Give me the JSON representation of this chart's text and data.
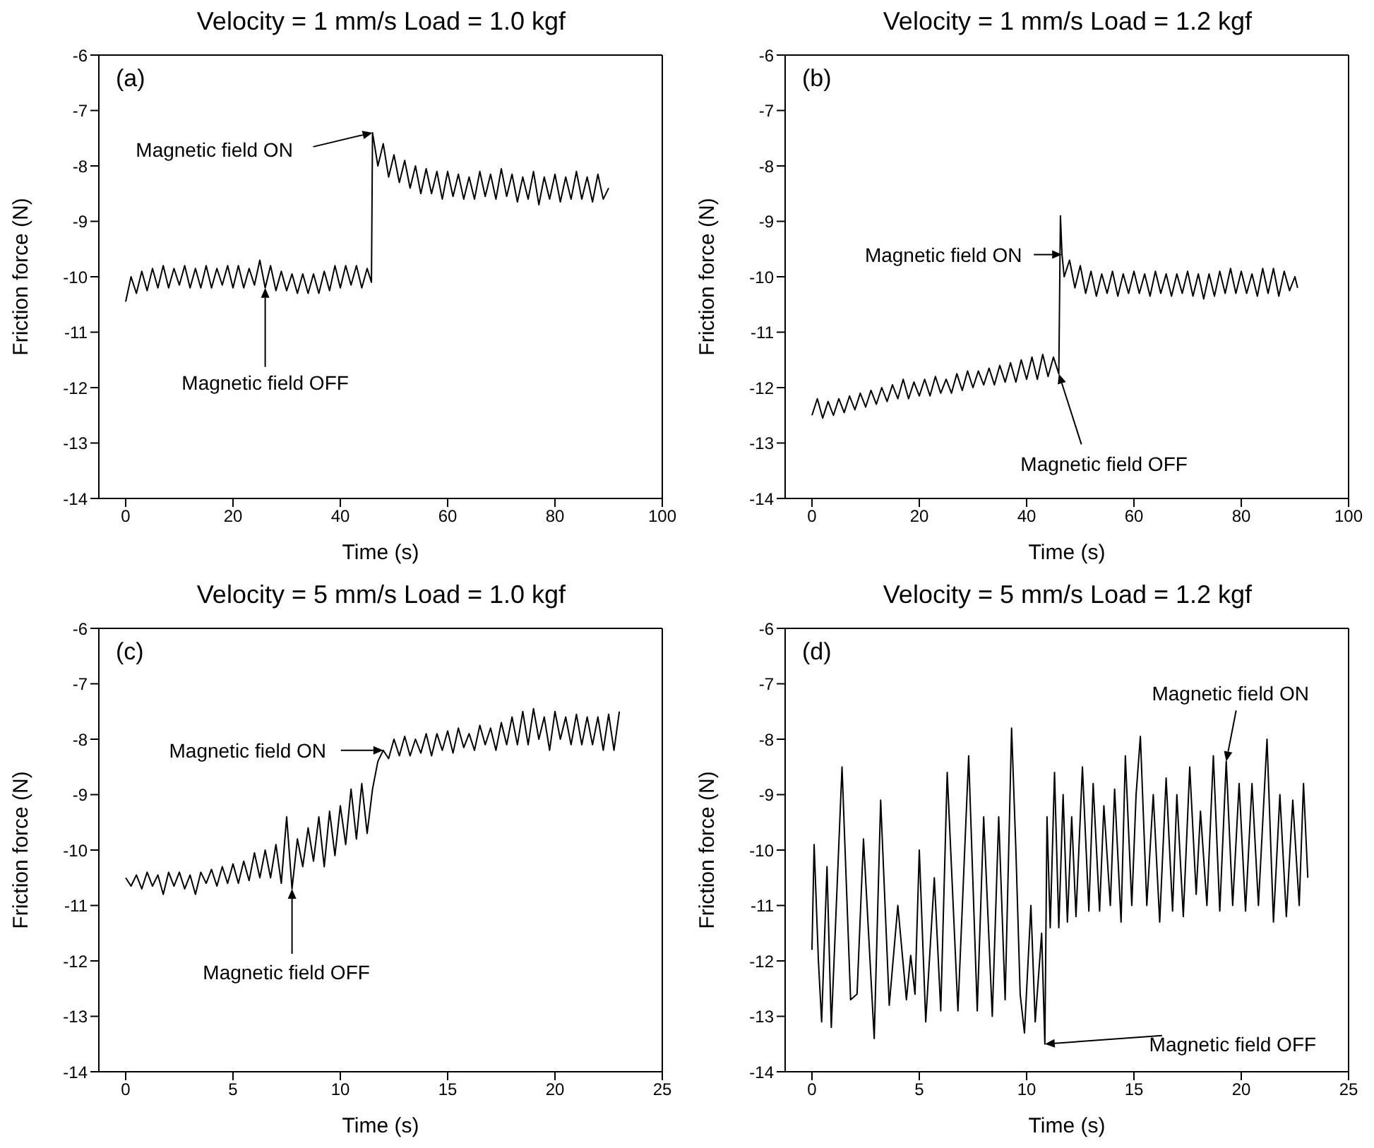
{
  "chart_data": [
    {
      "type": "line",
      "title": "Velocity = 1 mm/s  Load = 1.0 kgf",
      "xlabel": "Time (s)",
      "ylabel": "Friction force (N)",
      "color": "#000000",
      "x": [
        0,
        1,
        2,
        3,
        4,
        5,
        6,
        7,
        8,
        9,
        10,
        11,
        12,
        13,
        14,
        15,
        16,
        17,
        18,
        19,
        20,
        21,
        22,
        23,
        24,
        25,
        26,
        27,
        28,
        29,
        30,
        31,
        32,
        33,
        34,
        35,
        36,
        37,
        38,
        39,
        40,
        41,
        42,
        43,
        44,
        45,
        45.8,
        46,
        47,
        48,
        49,
        50,
        51,
        52,
        53,
        54,
        55,
        56,
        57,
        58,
        59,
        60,
        61,
        62,
        63,
        64,
        65,
        66,
        67,
        68,
        69,
        70,
        71,
        72,
        73,
        74,
        75,
        76,
        77,
        78,
        79,
        80,
        81,
        82,
        83,
        84,
        85,
        86,
        87,
        88,
        89,
        90
      ],
      "values": [
        -10.45,
        -10.0,
        -10.3,
        -9.9,
        -10.25,
        -9.85,
        -10.2,
        -9.8,
        -10.2,
        -9.85,
        -10.15,
        -9.8,
        -10.2,
        -9.85,
        -10.2,
        -9.8,
        -10.2,
        -9.85,
        -10.15,
        -9.8,
        -10.2,
        -9.8,
        -10.2,
        -9.85,
        -10.15,
        -9.7,
        -10.2,
        -9.8,
        -10.25,
        -9.9,
        -10.25,
        -9.95,
        -10.3,
        -9.95,
        -10.3,
        -9.95,
        -10.3,
        -9.9,
        -10.25,
        -9.8,
        -10.2,
        -9.8,
        -10.15,
        -9.8,
        -10.2,
        -9.85,
        -10.1,
        -7.4,
        -8.0,
        -7.6,
        -8.2,
        -7.8,
        -8.3,
        -7.9,
        -8.4,
        -8.0,
        -8.5,
        -8.05,
        -8.5,
        -8.1,
        -8.6,
        -8.1,
        -8.55,
        -8.15,
        -8.6,
        -8.2,
        -8.6,
        -8.1,
        -8.55,
        -8.15,
        -8.6,
        -8.05,
        -8.55,
        -8.15,
        -8.65,
        -8.2,
        -8.6,
        -8.1,
        -8.7,
        -8.2,
        -8.6,
        -8.15,
        -8.65,
        -8.2,
        -8.6,
        -8.1,
        -8.6,
        -8.2,
        -8.65,
        -8.15,
        -8.6,
        -8.4
      ],
      "xlim": [
        -5,
        100
      ],
      "xticks": [
        0,
        20,
        40,
        60,
        80,
        100
      ],
      "ylim": [
        -14,
        -6
      ],
      "yticks": [
        -14,
        -13,
        -12,
        -11,
        -10,
        -9,
        -8,
        -7,
        -6
      ],
      "annotations": [
        "(a)",
        {
          "text": "Magnetic field ON",
          "x": 46,
          "y": -7.4
        },
        {
          "text": "Magnetic field OFF",
          "x": 26,
          "y": -10.2
        }
      ]
    },
    {
      "type": "line",
      "title": "Velocity = 1 mm/s  Load = 1.2 kgf",
      "xlabel": "Time (s)",
      "ylabel": "Friction force (N)",
      "color": "#000000",
      "x": [
        0,
        1,
        2,
        3,
        4,
        5,
        6,
        7,
        8,
        9,
        10,
        11,
        12,
        13,
        14,
        15,
        16,
        17,
        18,
        19,
        20,
        21,
        22,
        23,
        24,
        25,
        26,
        27,
        28,
        29,
        30,
        31,
        32,
        33,
        34,
        35,
        36,
        37,
        38,
        39,
        40,
        41,
        42,
        43,
        44,
        45,
        46,
        46.3,
        46.6,
        47,
        48,
        49,
        50,
        51,
        52,
        53,
        54,
        55,
        56,
        57,
        58,
        59,
        60,
        61,
        62,
        63,
        64,
        65,
        66,
        67,
        68,
        69,
        70,
        71,
        72,
        73,
        74,
        75,
        76,
        77,
        78,
        79,
        80,
        81,
        82,
        83,
        84,
        85,
        86,
        87,
        88,
        89,
        90,
        90.5
      ],
      "values": [
        -12.5,
        -12.2,
        -12.55,
        -12.25,
        -12.5,
        -12.2,
        -12.45,
        -12.15,
        -12.4,
        -12.1,
        -12.35,
        -12.05,
        -12.3,
        -12.0,
        -12.25,
        -11.95,
        -12.2,
        -11.85,
        -12.2,
        -11.9,
        -12.15,
        -11.85,
        -12.15,
        -11.8,
        -12.1,
        -11.85,
        -12.1,
        -11.75,
        -12.05,
        -11.7,
        -12.0,
        -11.7,
        -11.95,
        -11.65,
        -11.95,
        -11.6,
        -11.9,
        -11.55,
        -11.9,
        -11.5,
        -11.85,
        -11.45,
        -11.85,
        -11.4,
        -11.8,
        -11.45,
        -11.75,
        -8.9,
        -9.6,
        -10.0,
        -9.7,
        -10.2,
        -9.8,
        -10.3,
        -9.9,
        -10.35,
        -9.95,
        -10.3,
        -9.9,
        -10.35,
        -9.95,
        -10.3,
        -9.9,
        -10.3,
        -9.95,
        -10.35,
        -9.9,
        -10.3,
        -9.95,
        -10.35,
        -9.95,
        -10.3,
        -9.9,
        -10.35,
        -9.95,
        -10.4,
        -9.95,
        -10.35,
        -9.9,
        -10.3,
        -9.85,
        -10.3,
        -9.9,
        -10.3,
        -9.95,
        -10.35,
        -9.85,
        -10.3,
        -9.85,
        -10.35,
        -9.9,
        -10.25,
        -10.0,
        -10.2
      ],
      "xlim": [
        -5,
        100
      ],
      "xticks": [
        0,
        20,
        40,
        60,
        80,
        100
      ],
      "ylim": [
        -14,
        -6
      ],
      "yticks": [
        -14,
        -13,
        -12,
        -11,
        -10,
        -9,
        -8,
        -7,
        -6
      ],
      "annotations": [
        "(b)",
        {
          "text": "Magnetic field ON",
          "x": 46.6,
          "y": -9.6
        },
        {
          "text": "Magnetic field OFF",
          "x": 46,
          "y": -11.75
        }
      ]
    },
    {
      "type": "line",
      "title": "Velocity = 5 mm/s  Load = 1.0 kgf",
      "xlabel": "Time (s)",
      "ylabel": "Friction force (N)",
      "color": "#000000",
      "x": [
        0,
        0.25,
        0.5,
        0.75,
        1,
        1.25,
        1.5,
        1.75,
        2,
        2.25,
        2.5,
        2.75,
        3,
        3.25,
        3.5,
        3.75,
        4,
        4.25,
        4.5,
        4.75,
        5,
        5.25,
        5.5,
        5.75,
        6,
        6.25,
        6.5,
        6.75,
        7,
        7.25,
        7.5,
        7.75,
        8,
        8.25,
        8.5,
        8.75,
        9,
        9.25,
        9.5,
        9.75,
        10,
        10.25,
        10.5,
        10.75,
        11,
        11.25,
        11.5,
        11.75,
        12,
        12.25,
        12.5,
        12.75,
        13,
        13.25,
        13.5,
        13.75,
        14,
        14.25,
        14.5,
        14.75,
        15,
        15.25,
        15.5,
        15.75,
        16,
        16.25,
        16.5,
        16.75,
        17,
        17.25,
        17.5,
        17.75,
        18,
        18.25,
        18.5,
        18.75,
        19,
        19.25,
        19.5,
        19.75,
        20,
        20.25,
        20.5,
        20.75,
        21,
        21.25,
        21.5,
        21.75,
        22,
        22.25,
        22.5,
        22.75,
        23
      ],
      "values": [
        -10.5,
        -10.65,
        -10.45,
        -10.7,
        -10.4,
        -10.65,
        -10.45,
        -10.8,
        -10.4,
        -10.65,
        -10.4,
        -10.7,
        -10.45,
        -10.8,
        -10.4,
        -10.6,
        -10.35,
        -10.65,
        -10.3,
        -10.6,
        -10.25,
        -10.6,
        -10.2,
        -10.55,
        -10.05,
        -10.5,
        -10.0,
        -10.5,
        -9.9,
        -10.6,
        -9.4,
        -10.7,
        -9.8,
        -10.3,
        -9.6,
        -10.2,
        -9.4,
        -10.3,
        -9.3,
        -10.1,
        -9.2,
        -9.9,
        -8.9,
        -9.8,
        -8.8,
        -9.7,
        -8.9,
        -8.4,
        -8.2,
        -8.35,
        -8.0,
        -8.3,
        -7.95,
        -8.3,
        -8.0,
        -8.25,
        -7.9,
        -8.3,
        -7.9,
        -8.2,
        -7.85,
        -8.25,
        -7.8,
        -8.15,
        -7.9,
        -8.2,
        -7.75,
        -8.1,
        -7.8,
        -8.2,
        -7.7,
        -8.1,
        -7.6,
        -8.1,
        -7.5,
        -8.1,
        -7.45,
        -8.0,
        -7.6,
        -8.2,
        -7.5,
        -8.0,
        -7.6,
        -8.1,
        -7.55,
        -8.1,
        -7.6,
        -8.1,
        -7.6,
        -8.2,
        -7.55,
        -8.2,
        -7.5
      ],
      "xlim": [
        -1.25,
        25
      ],
      "xticks": [
        0,
        5,
        10,
        15,
        20,
        25
      ],
      "ylim": [
        -14,
        -6
      ],
      "yticks": [
        -14,
        -13,
        -12,
        -11,
        -10,
        -9,
        -8,
        -7,
        -6
      ],
      "annotations": [
        "(c)",
        {
          "text": "Magnetic field ON",
          "x": 12,
          "y": -8.2
        },
        {
          "text": "Magnetic field OFF",
          "x": 7.75,
          "y": -10.7
        }
      ]
    },
    {
      "type": "line",
      "title": "Velocity = 5 mm/s  Load = 1.2 kgf",
      "xlabel": "Time (s)",
      "ylabel": "Friction force (N)",
      "color": "#000000",
      "x": [
        0,
        0.1,
        0.3,
        0.45,
        0.7,
        0.9,
        1.4,
        1.8,
        2.1,
        2.4,
        2.9,
        3.2,
        3.6,
        4.0,
        4.4,
        4.6,
        4.8,
        5.0,
        5.3,
        5.7,
        6.0,
        6.3,
        6.8,
        7.3,
        7.7,
        8.0,
        8.4,
        8.7,
        9.0,
        9.3,
        9.5,
        9.7,
        9.9,
        10.2,
        10.4,
        10.7,
        10.85,
        10.95,
        11.1,
        11.3,
        11.5,
        11.7,
        11.9,
        12.1,
        12.3,
        12.6,
        12.9,
        13.1,
        13.4,
        13.6,
        13.9,
        14.1,
        14.4,
        14.6,
        14.9,
        15.1,
        15.3,
        15.6,
        15.9,
        16.2,
        16.5,
        16.8,
        17.0,
        17.3,
        17.6,
        17.9,
        18.1,
        18.4,
        18.7,
        19.0,
        19.3,
        19.6,
        19.9,
        20.2,
        20.5,
        20.8,
        21.2,
        21.5,
        21.8,
        22.1,
        22.4,
        22.7,
        22.9,
        23.1
      ],
      "values": [
        -11.8,
        -9.9,
        -12.0,
        -13.1,
        -10.3,
        -13.2,
        -8.5,
        -12.7,
        -12.6,
        -9.8,
        -13.4,
        -9.1,
        -12.8,
        -11.0,
        -12.7,
        -11.9,
        -12.6,
        -10.0,
        -13.1,
        -10.5,
        -12.9,
        -8.6,
        -12.9,
        -8.3,
        -12.9,
        -9.4,
        -13.0,
        -9.4,
        -12.7,
        -7.8,
        -10.0,
        -12.6,
        -13.3,
        -11.0,
        -13.1,
        -11.5,
        -13.5,
        -9.4,
        -11.4,
        -8.6,
        -11.4,
        -9.0,
        -11.3,
        -9.4,
        -11.2,
        -8.5,
        -11.1,
        -8.8,
        -11.1,
        -9.2,
        -11.0,
        -8.9,
        -11.3,
        -8.3,
        -11.0,
        -9.0,
        -7.95,
        -11.0,
        -9.0,
        -11.3,
        -8.7,
        -11.1,
        -9.0,
        -11.2,
        -8.5,
        -10.8,
        -9.3,
        -11.0,
        -8.3,
        -11.1,
        -8.4,
        -11.0,
        -8.8,
        -11.1,
        -8.8,
        -11.0,
        -8.0,
        -11.3,
        -9.0,
        -11.2,
        -9.1,
        -11.0,
        -8.8,
        -10.5
      ],
      "xlim": [
        -1.25,
        25
      ],
      "xticks": [
        0,
        5,
        10,
        15,
        20,
        25
      ],
      "ylim": [
        -14,
        -6
      ],
      "yticks": [
        -14,
        -13,
        -12,
        -11,
        -10,
        -9,
        -8,
        -7,
        -6
      ],
      "annotations": [
        "(d)",
        {
          "text": "Magnetic field ON",
          "x": 19.3,
          "y": -8.4
        },
        {
          "text": "Magnetic field OFF",
          "x": 10.85,
          "y": -13.5
        }
      ]
    }
  ]
}
